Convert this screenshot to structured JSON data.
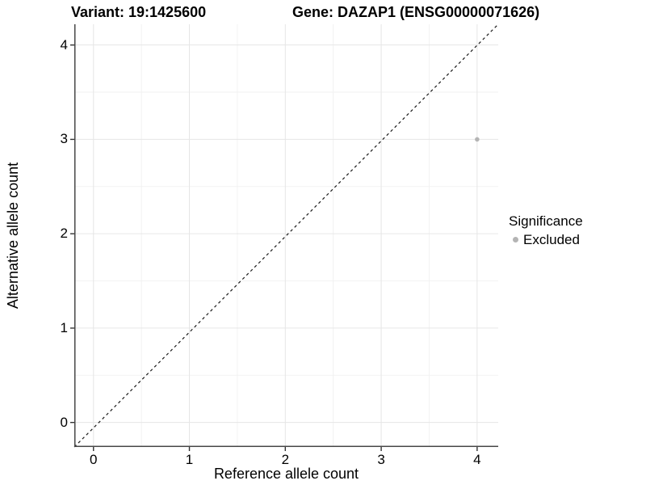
{
  "header": {
    "variant_title": "Variant: 19:1425600",
    "gene_title": "Gene: DAZAP1 (ENSG00000071626)"
  },
  "chart_data": {
    "type": "scatter",
    "xlabel": "Reference allele count",
    "ylabel": "Alternative allele count",
    "x_ticks": [
      "0",
      "1",
      "2",
      "3",
      "4"
    ],
    "y_ticks": [
      "0",
      "1",
      "2",
      "3",
      "4"
    ],
    "x_tick_values": [
      0,
      1,
      2,
      3,
      4
    ],
    "y_tick_values": [
      0,
      1,
      2,
      3,
      4
    ],
    "xlim": [
      -0.2,
      4.22
    ],
    "ylim": [
      -0.26,
      4.22
    ],
    "grid": {
      "major": true,
      "minor": true
    },
    "reference_line": {
      "type": "identity",
      "equation": "y = x",
      "style": "dashed"
    },
    "points": [
      {
        "x": 4,
        "y": 3,
        "significance": "Excluded"
      }
    ],
    "legend": {
      "title": "Significance",
      "position": "right",
      "entries": [
        {
          "label": "Excluded",
          "color": "#b4b4b4"
        }
      ]
    },
    "colors": {
      "point": "#b4b4b4",
      "major_grid": "#e6e6e6",
      "minor_grid": "#f2f2f2",
      "axis_line": "#474747",
      "tick_mark": "#333333",
      "reference_line": "#1a1a1a",
      "background": "#ffffff"
    }
  }
}
